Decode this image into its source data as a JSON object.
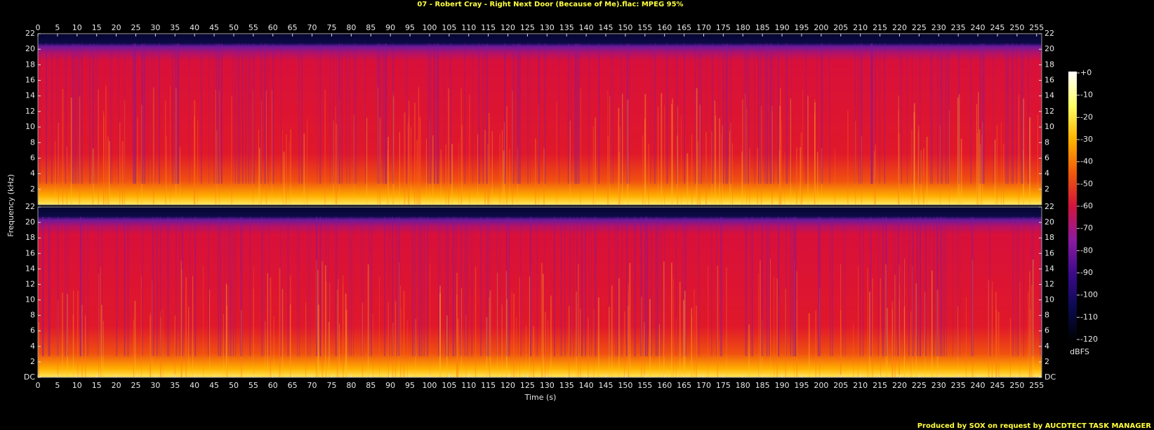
{
  "title": "07 - Robert Cray - Right Next Door (Because of Me).flac: MPEG 95%",
  "footer": "Produced by SOX on request by AUCDTECT TASK MANAGER",
  "xlabel": "Time (s)",
  "ylabel": "Frequency (kHz)",
  "colormap": [
    "#000000",
    "#0a0a50",
    "#3c0a8c",
    "#8c1aa0",
    "#d2143c",
    "#f05a0a",
    "#ffb400",
    "#ffff64",
    "#ffffff"
  ],
  "colorbar": {
    "label": "dBFS",
    "lim": [
      -120,
      0
    ],
    "ticks": [
      {
        "value": 0,
        "label": "+0"
      },
      -10,
      -20,
      -30,
      -40,
      -50,
      -60,
      -70,
      -80,
      -90,
      -100,
      -110,
      -120
    ]
  },
  "chart_data": [
    {
      "type": "spectrogram",
      "xlim": [
        0,
        256.3
      ],
      "ylim": [
        0,
        22
      ],
      "xticks": [
        0,
        5,
        10,
        15,
        20,
        25,
        30,
        35,
        40,
        45,
        50,
        55,
        60,
        65,
        70,
        75,
        80,
        85,
        90,
        95,
        100,
        105,
        110,
        115,
        120,
        125,
        130,
        135,
        140,
        145,
        150,
        155,
        160,
        165,
        170,
        175,
        180,
        185,
        190,
        195,
        200,
        205,
        210,
        215,
        220,
        225,
        230,
        235,
        240,
        245,
        250,
        255
      ],
      "yticks": [
        2,
        4,
        6,
        8,
        10,
        12,
        14,
        16,
        18,
        20,
        22
      ]
    },
    {
      "type": "spectrogram",
      "xlim": [
        0,
        256.3
      ],
      "ylim": [
        0,
        22
      ],
      "xticks": [
        0,
        5,
        10,
        15,
        20,
        25,
        30,
        35,
        40,
        45,
        50,
        55,
        60,
        65,
        70,
        75,
        80,
        85,
        90,
        95,
        100,
        105,
        110,
        115,
        120,
        125,
        130,
        135,
        140,
        145,
        150,
        155,
        160,
        165,
        170,
        175,
        180,
        185,
        190,
        195,
        200,
        205,
        210,
        215,
        220,
        225,
        230,
        235,
        240,
        245,
        250,
        255
      ],
      "yticks": [
        {
          "value": 0,
          "label": "DC"
        },
        2,
        4,
        6,
        8,
        10,
        12,
        14,
        16,
        18,
        20,
        22
      ]
    }
  ]
}
